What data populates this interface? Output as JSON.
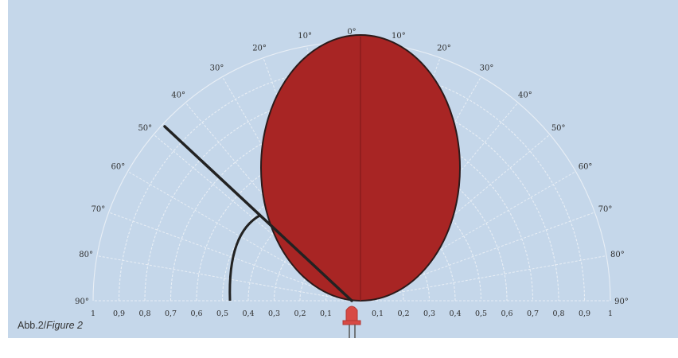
{
  "colors": {
    "background": "#c5d7ea",
    "grid": "#e8eef5",
    "lobe_fill": "#a82524",
    "lobe_stroke": "#2b1a1a",
    "line": "#222222",
    "led": "#d84a44"
  },
  "angle_labels_left": [
    "0°",
    "10°",
    "20°",
    "30°",
    "40°",
    "50°",
    "60°",
    "70°",
    "80°",
    "90°"
  ],
  "angle_labels_right": [
    "10°",
    "20°",
    "30°",
    "40°",
    "50°",
    "60°",
    "70°",
    "80°",
    "90°"
  ],
  "scale_labels_left": [
    "1",
    "0,9",
    "0,8",
    "0,7",
    "0,6",
    "0,5",
    "0,4",
    "0,3",
    "0,2",
    "0,1"
  ],
  "scale_labels_right": [
    "0,1",
    "0,2",
    "0,3",
    "0,4",
    "0,5",
    "0,6",
    "0,7",
    "0,8",
    "0,9",
    "1"
  ],
  "half_angle_marker": {
    "angle_deg": 50,
    "relative_intensity": 0.5
  },
  "caption": {
    "prefix": "Abb.2/",
    "italic": "Figure 2"
  }
}
